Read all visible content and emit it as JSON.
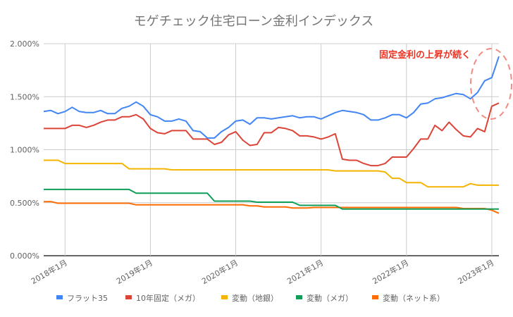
{
  "chart_data": {
    "type": "line",
    "title": "モゲチェック住宅ローン金利インデックス",
    "annotation": {
      "text": "固定金利の上昇が続く",
      "color": "#EA3323"
    },
    "x": [
      "2017-10",
      "2017-11",
      "2017-12",
      "2018-01",
      "2018-02",
      "2018-03",
      "2018-04",
      "2018-05",
      "2018-06",
      "2018-07",
      "2018-08",
      "2018-09",
      "2018-10",
      "2018-11",
      "2018-12",
      "2019-01",
      "2019-02",
      "2019-03",
      "2019-04",
      "2019-05",
      "2019-06",
      "2019-07",
      "2019-08",
      "2019-09",
      "2019-10",
      "2019-11",
      "2019-12",
      "2020-01",
      "2020-02",
      "2020-03",
      "2020-04",
      "2020-05",
      "2020-06",
      "2020-07",
      "2020-08",
      "2020-09",
      "2020-10",
      "2020-11",
      "2020-12",
      "2021-01",
      "2021-02",
      "2021-03",
      "2021-04",
      "2021-05",
      "2021-06",
      "2021-07",
      "2021-08",
      "2021-09",
      "2021-10",
      "2021-11",
      "2021-12",
      "2022-01",
      "2022-02",
      "2022-03",
      "2022-04",
      "2022-05",
      "2022-06",
      "2022-07",
      "2022-08",
      "2022-09",
      "2022-10",
      "2022-11",
      "2022-12",
      "2023-01",
      "2023-02"
    ],
    "x_ticks": [
      {
        "x": "2018-01",
        "label": "2018年1月"
      },
      {
        "x": "2019-01",
        "label": "2019年1月"
      },
      {
        "x": "2020-01",
        "label": "2020年1月"
      },
      {
        "x": "2021-01",
        "label": "2021年1月"
      },
      {
        "x": "2022-01",
        "label": "2022年1月"
      },
      {
        "x": "2023-01",
        "label": "2023年1月"
      }
    ],
    "y_ticks": [
      {
        "value": 0,
        "label": "0.000%"
      },
      {
        "value": 0.5,
        "label": "0.500%"
      },
      {
        "value": 1.0,
        "label": "1.000%"
      },
      {
        "value": 1.5,
        "label": "1.500%"
      },
      {
        "value": 2.0,
        "label": "2.000%"
      }
    ],
    "ylim": [
      0,
      2.0
    ],
    "grid": true,
    "legend_position": "bottom",
    "series": [
      {
        "name": "フラット35",
        "color": "#4285F4",
        "values": [
          1.36,
          1.37,
          1.34,
          1.36,
          1.4,
          1.36,
          1.35,
          1.35,
          1.37,
          1.34,
          1.34,
          1.39,
          1.41,
          1.45,
          1.41,
          1.33,
          1.31,
          1.27,
          1.27,
          1.29,
          1.27,
          1.18,
          1.17,
          1.11,
          1.11,
          1.17,
          1.21,
          1.27,
          1.28,
          1.24,
          1.3,
          1.3,
          1.29,
          1.3,
          1.31,
          1.32,
          1.3,
          1.31,
          1.31,
          1.29,
          1.32,
          1.35,
          1.37,
          1.36,
          1.35,
          1.33,
          1.28,
          1.28,
          1.3,
          1.33,
          1.33,
          1.3,
          1.35,
          1.43,
          1.44,
          1.48,
          1.49,
          1.51,
          1.53,
          1.52,
          1.48,
          1.54,
          1.65,
          1.68,
          1.88
        ]
      },
      {
        "name": "10年固定（メガ）",
        "color": "#DB4437",
        "values": [
          1.2,
          1.2,
          1.2,
          1.2,
          1.23,
          1.23,
          1.21,
          1.23,
          1.26,
          1.28,
          1.28,
          1.31,
          1.31,
          1.33,
          1.29,
          1.2,
          1.16,
          1.15,
          1.18,
          1.18,
          1.18,
          1.1,
          1.1,
          1.1,
          1.05,
          1.07,
          1.14,
          1.17,
          1.09,
          1.04,
          1.05,
          1.16,
          1.16,
          1.21,
          1.2,
          1.18,
          1.13,
          1.13,
          1.12,
          1.1,
          1.12,
          1.15,
          0.91,
          0.9,
          0.9,
          0.87,
          0.85,
          0.85,
          0.87,
          0.93,
          0.93,
          0.93,
          1.01,
          1.1,
          1.1,
          1.23,
          1.18,
          1.26,
          1.19,
          1.13,
          1.12,
          1.2,
          1.17,
          1.41,
          1.44
        ]
      },
      {
        "name": "変動（地銀）",
        "color": "#F4B400",
        "values": [
          0.9,
          0.9,
          0.9,
          0.87,
          0.87,
          0.87,
          0.87,
          0.87,
          0.87,
          0.87,
          0.87,
          0.87,
          0.82,
          0.82,
          0.82,
          0.82,
          0.82,
          0.82,
          0.81,
          0.81,
          0.81,
          0.81,
          0.81,
          0.81,
          0.81,
          0.81,
          0.81,
          0.81,
          0.81,
          0.81,
          0.81,
          0.81,
          0.81,
          0.81,
          0.81,
          0.81,
          0.81,
          0.81,
          0.81,
          0.81,
          0.81,
          0.8,
          0.8,
          0.8,
          0.8,
          0.8,
          0.8,
          0.8,
          0.79,
          0.73,
          0.73,
          0.69,
          0.69,
          0.69,
          0.65,
          0.65,
          0.65,
          0.65,
          0.65,
          0.65,
          0.68,
          0.665,
          0.665,
          0.665,
          0.665
        ]
      },
      {
        "name": "変動（メガ）",
        "color": "#0F9D58",
        "values": [
          0.625,
          0.625,
          0.625,
          0.625,
          0.625,
          0.625,
          0.625,
          0.625,
          0.625,
          0.625,
          0.625,
          0.625,
          0.625,
          0.59,
          0.59,
          0.59,
          0.59,
          0.59,
          0.59,
          0.59,
          0.59,
          0.59,
          0.59,
          0.59,
          0.515,
          0.515,
          0.515,
          0.515,
          0.515,
          0.515,
          0.505,
          0.505,
          0.505,
          0.505,
          0.505,
          0.505,
          0.475,
          0.475,
          0.475,
          0.475,
          0.475,
          0.475,
          0.44,
          0.44,
          0.44,
          0.44,
          0.44,
          0.44,
          0.44,
          0.44,
          0.44,
          0.44,
          0.44,
          0.44,
          0.44,
          0.44,
          0.44,
          0.44,
          0.44,
          0.44,
          0.44,
          0.44,
          0.44,
          0.44,
          0.44
        ]
      },
      {
        "name": "変動（ネット系）",
        "color": "#FF6D01",
        "values": [
          0.51,
          0.51,
          0.495,
          0.495,
          0.495,
          0.495,
          0.495,
          0.495,
          0.495,
          0.495,
          0.495,
          0.495,
          0.495,
          0.48,
          0.48,
          0.48,
          0.48,
          0.48,
          0.48,
          0.48,
          0.48,
          0.48,
          0.48,
          0.48,
          0.48,
          0.48,
          0.48,
          0.48,
          0.48,
          0.47,
          0.47,
          0.46,
          0.46,
          0.46,
          0.46,
          0.45,
          0.45,
          0.45,
          0.455,
          0.455,
          0.455,
          0.455,
          0.455,
          0.455,
          0.455,
          0.455,
          0.455,
          0.455,
          0.455,
          0.455,
          0.455,
          0.455,
          0.455,
          0.455,
          0.455,
          0.455,
          0.455,
          0.455,
          0.455,
          0.445,
          0.445,
          0.445,
          0.445,
          0.43,
          0.4
        ]
      }
    ]
  }
}
